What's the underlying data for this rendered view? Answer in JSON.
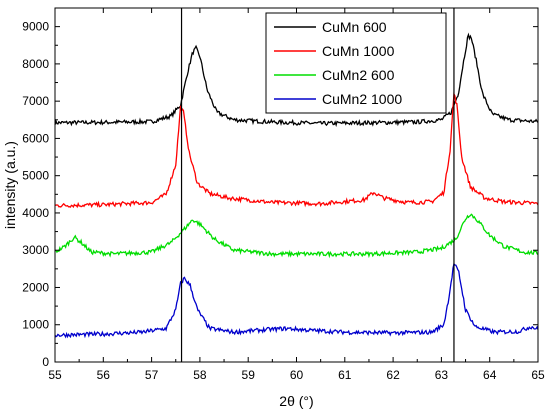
{
  "chart_data": {
    "type": "line",
    "xlabel": "2θ (°)",
    "ylabel": "intensity (a.u.)",
    "xlim": [
      55,
      65
    ],
    "ylim": [
      0,
      9500
    ],
    "xticks": [
      55,
      56,
      57,
      58,
      59,
      60,
      61,
      62,
      63,
      64,
      65
    ],
    "yticks": [
      0,
      1000,
      2000,
      3000,
      4000,
      5000,
      6000,
      7000,
      8000,
      9000
    ],
    "xtick_labels": [
      "55",
      "56",
      "57",
      "58",
      "59",
      "60",
      "61",
      "62",
      "63",
      "64",
      "65"
    ],
    "ytick_labels": [
      "0",
      "1000",
      "2000",
      "3000",
      "4000",
      "5000",
      "6000",
      "7000",
      "8000",
      "9000"
    ],
    "vlines": [
      57.62,
      63.26
    ],
    "grid": false,
    "legend_position": "top-right",
    "series": [
      {
        "name": "CuMn 600",
        "color": "#000000",
        "points": [
          [
            55.0,
            6420
          ],
          [
            56.0,
            6430
          ],
          [
            57.0,
            6450
          ],
          [
            57.4,
            6600
          ],
          [
            57.6,
            6900
          ],
          [
            57.75,
            7800
          ],
          [
            57.85,
            8300
          ],
          [
            57.92,
            8420
          ],
          [
            58.0,
            8200
          ],
          [
            58.15,
            7300
          ],
          [
            58.35,
            6700
          ],
          [
            58.7,
            6500
          ],
          [
            59.5,
            6440
          ],
          [
            60.5,
            6400
          ],
          [
            61.5,
            6420
          ],
          [
            62.5,
            6440
          ],
          [
            63.0,
            6500
          ],
          [
            63.2,
            6700
          ],
          [
            63.35,
            7200
          ],
          [
            63.45,
            8000
          ],
          [
            63.55,
            8750
          ],
          [
            63.62,
            8700
          ],
          [
            63.72,
            8100
          ],
          [
            63.85,
            7200
          ],
          [
            64.05,
            6650
          ],
          [
            64.4,
            6500
          ],
          [
            65.0,
            6450
          ]
        ]
      },
      {
        "name": "CuMn 1000",
        "color": "#ff0000",
        "points": [
          [
            55.0,
            4200
          ],
          [
            56.0,
            4220
          ],
          [
            57.0,
            4280
          ],
          [
            57.3,
            4500
          ],
          [
            57.5,
            5300
          ],
          [
            57.6,
            6850
          ],
          [
            57.66,
            6700
          ],
          [
            57.78,
            5600
          ],
          [
            57.95,
            4800
          ],
          [
            58.2,
            4520
          ],
          [
            58.6,
            4400
          ],
          [
            59.5,
            4280
          ],
          [
            60.5,
            4250
          ],
          [
            61.4,
            4350
          ],
          [
            61.6,
            4550
          ],
          [
            61.8,
            4400
          ],
          [
            62.3,
            4280
          ],
          [
            62.8,
            4300
          ],
          [
            63.05,
            4550
          ],
          [
            63.18,
            5700
          ],
          [
            63.26,
            7200
          ],
          [
            63.32,
            6900
          ],
          [
            63.42,
            5500
          ],
          [
            63.6,
            4700
          ],
          [
            63.9,
            4400
          ],
          [
            64.3,
            4300
          ],
          [
            65.0,
            4250
          ]
        ]
      },
      {
        "name": "CuMn2 600",
        "color": "#00dd00",
        "points": [
          [
            55.0,
            2950
          ],
          [
            55.2,
            3100
          ],
          [
            55.4,
            3350
          ],
          [
            55.55,
            3200
          ],
          [
            55.75,
            2950
          ],
          [
            56.2,
            2900
          ],
          [
            57.0,
            2950
          ],
          [
            57.4,
            3200
          ],
          [
            57.7,
            3600
          ],
          [
            57.85,
            3820
          ],
          [
            58.0,
            3700
          ],
          [
            58.3,
            3300
          ],
          [
            58.7,
            3000
          ],
          [
            59.5,
            2900
          ],
          [
            60.5,
            2900
          ],
          [
            61.5,
            2900
          ],
          [
            62.5,
            2950
          ],
          [
            63.0,
            3050
          ],
          [
            63.3,
            3300
          ],
          [
            63.5,
            3850
          ],
          [
            63.6,
            3980
          ],
          [
            63.75,
            3800
          ],
          [
            64.0,
            3400
          ],
          [
            64.3,
            3100
          ],
          [
            64.7,
            2950
          ],
          [
            65.0,
            2920
          ]
        ]
      },
      {
        "name": "CuMn2 1000",
        "color": "#0000cc",
        "points": [
          [
            55.0,
            720
          ],
          [
            56.0,
            750
          ],
          [
            56.8,
            800
          ],
          [
            57.3,
            900
          ],
          [
            57.5,
            1400
          ],
          [
            57.6,
            2100
          ],
          [
            57.68,
            2250
          ],
          [
            57.8,
            2050
          ],
          [
            57.95,
            1400
          ],
          [
            58.2,
            900
          ],
          [
            58.7,
            800
          ],
          [
            59.5,
            880
          ],
          [
            59.8,
            900
          ],
          [
            60.3,
            850
          ],
          [
            61.0,
            800
          ],
          [
            62.0,
            780
          ],
          [
            62.8,
            800
          ],
          [
            63.05,
            1000
          ],
          [
            63.15,
            1700
          ],
          [
            63.26,
            2650
          ],
          [
            63.36,
            2400
          ],
          [
            63.5,
            1400
          ],
          [
            63.7,
            950
          ],
          [
            64.1,
            800
          ],
          [
            64.6,
            820
          ],
          [
            64.85,
            950
          ],
          [
            65.0,
            880
          ]
        ]
      }
    ]
  }
}
